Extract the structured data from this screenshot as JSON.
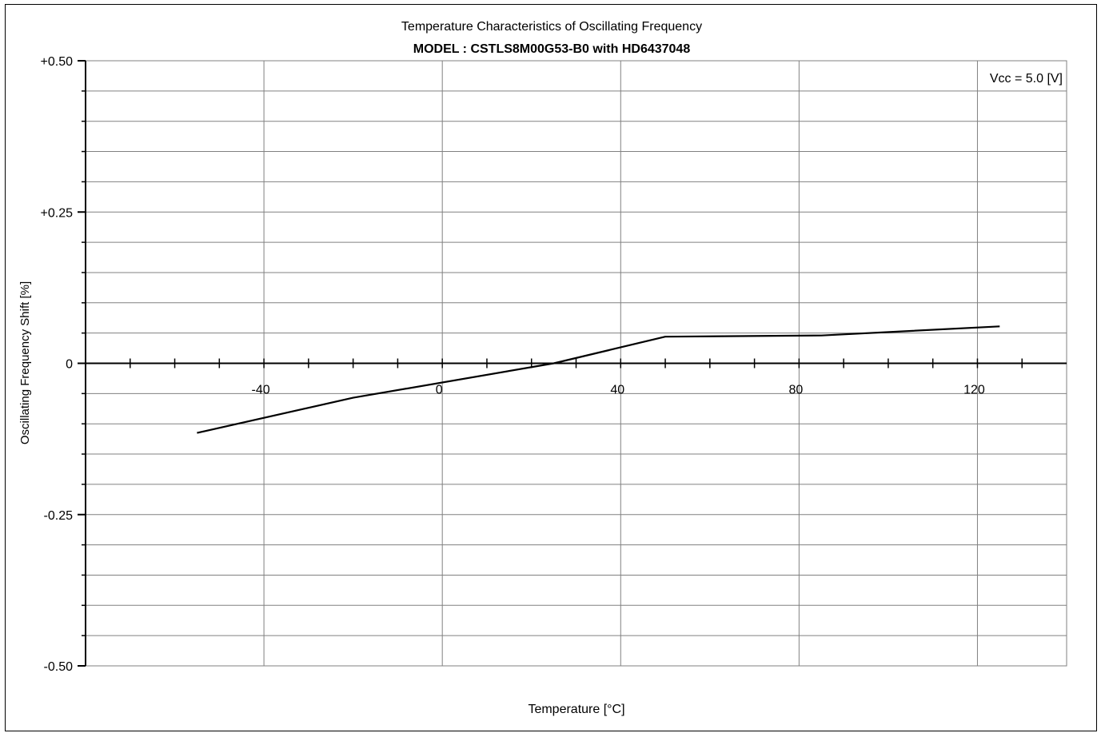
{
  "chart_data": {
    "type": "line",
    "title": "Temperature Characteristics of Oscillating Frequency",
    "subtitle": "MODEL : CSTLS8M00G53-B0 with HD6437048",
    "xlabel": "Temperature [°C]",
    "ylabel": "Oscillating Frequency Shift [%]",
    "annotation": "Vcc = 5.0 [V]",
    "xlim": [
      -80,
      140
    ],
    "ylim": [
      -0.5,
      0.5
    ],
    "x_ticks": [
      -40,
      0,
      40,
      80,
      120
    ],
    "x_tick_labels": [
      "-40",
      "0",
      "40",
      "80",
      "120"
    ],
    "y_ticks": [
      0.5,
      0.25,
      0,
      -0.25,
      -0.5
    ],
    "y_tick_labels": [
      "+0.50",
      "+0.25",
      "0",
      "-0.25",
      "-0.50"
    ],
    "grid": true,
    "series": [
      {
        "x": [
          -55,
          -20,
          25,
          50,
          85,
          125
        ],
        "y": [
          -0.115,
          -0.057,
          0.0,
          0.044,
          0.046,
          0.061
        ],
        "color": "#000000"
      }
    ]
  }
}
